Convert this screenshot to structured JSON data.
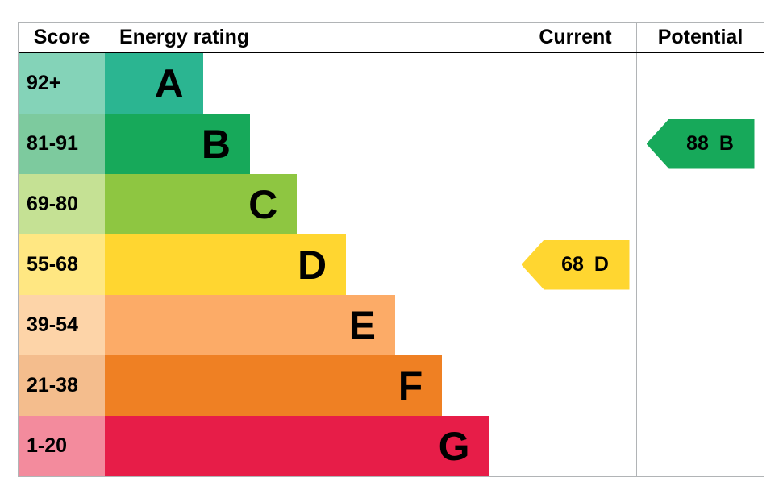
{
  "header": {
    "score": "Score",
    "rating": "Energy rating",
    "current": "Current",
    "potential": "Potential"
  },
  "chart_data": {
    "type": "bar",
    "title": "Energy rating",
    "description": "EPC energy efficiency rating chart with current and potential ratings",
    "bands": [
      {
        "range": "92+",
        "letter": "A",
        "bar_color": "#2bb591",
        "range_bg": "#84d3b8",
        "width_pct": 24
      },
      {
        "range": "81-91",
        "letter": "B",
        "bar_color": "#17a95a",
        "range_bg": "#7dca9e",
        "width_pct": 35.5
      },
      {
        "range": "69-80",
        "letter": "C",
        "bar_color": "#8ec641",
        "range_bg": "#c5e194",
        "width_pct": 47
      },
      {
        "range": "55-68",
        "letter": "D",
        "bar_color": "#ffd630",
        "range_bg": "#ffe782",
        "width_pct": 59
      },
      {
        "range": "39-54",
        "letter": "E",
        "bar_color": "#fcab67",
        "range_bg": "#fdd4a8",
        "width_pct": 71
      },
      {
        "range": "21-38",
        "letter": "F",
        "bar_color": "#ef8023",
        "range_bg": "#f4bd8d",
        "width_pct": 82.5
      },
      {
        "range": "1-20",
        "letter": "G",
        "bar_color": "#e71d48",
        "range_bg": "#f38b9d",
        "width_pct": 94
      }
    ],
    "current": {
      "value": "68",
      "letter": "D",
      "color": "#ffd630"
    },
    "potential": {
      "value": "88",
      "letter": "B",
      "color": "#17a95a"
    }
  }
}
